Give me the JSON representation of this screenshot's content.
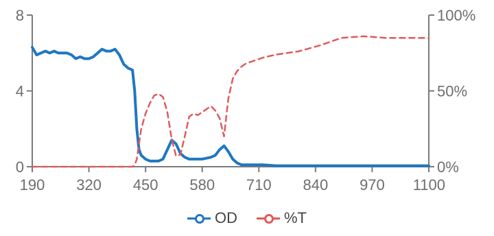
{
  "chart_data": {
    "type": "line",
    "x": [
      190,
      200,
      210,
      220,
      230,
      240,
      250,
      260,
      270,
      280,
      290,
      300,
      310,
      320,
      330,
      340,
      350,
      360,
      370,
      380,
      390,
      400,
      410,
      420,
      425,
      430,
      435,
      440,
      450,
      460,
      470,
      480,
      490,
      500,
      510,
      520,
      530,
      540,
      550,
      560,
      570,
      580,
      590,
      600,
      610,
      620,
      630,
      640,
      650,
      660,
      670,
      680,
      700,
      720,
      750,
      800,
      850,
      900,
      950,
      1000,
      1050,
      1100
    ],
    "series": [
      {
        "name": "OD",
        "axis": "left",
        "color": "#1f77c2",
        "style": "solid",
        "values": [
          6.3,
          5.9,
          6.0,
          6.1,
          6.0,
          6.1,
          6.0,
          6.0,
          6.0,
          5.9,
          5.7,
          5.8,
          5.7,
          5.7,
          5.8,
          6.0,
          6.2,
          6.1,
          6.1,
          6.2,
          5.9,
          5.4,
          5.2,
          5.1,
          4.0,
          2.0,
          0.9,
          0.6,
          0.4,
          0.3,
          0.3,
          0.3,
          0.4,
          0.9,
          1.4,
          1.2,
          0.7,
          0.5,
          0.4,
          0.4,
          0.4,
          0.4,
          0.45,
          0.5,
          0.6,
          0.9,
          1.1,
          0.8,
          0.4,
          0.2,
          0.1,
          0.1,
          0.1,
          0.1,
          0.05,
          0.05,
          0.05,
          0.05,
          0.05,
          0.05,
          0.05,
          0.05
        ]
      },
      {
        "name": "%T",
        "axis": "right",
        "color": "#e05a5a",
        "style": "dashed",
        "values": [
          0,
          0,
          0,
          0,
          0,
          0,
          0,
          0,
          0,
          0,
          0,
          0,
          0,
          0,
          0,
          0,
          0,
          0,
          0,
          0,
          0,
          0,
          0,
          0,
          1,
          5,
          15,
          25,
          35,
          42,
          47,
          48,
          46,
          36,
          18,
          7,
          8,
          20,
          33,
          35,
          34,
          36,
          38,
          40,
          37,
          32,
          20,
          45,
          58,
          63,
          66,
          68,
          70,
          72,
          74,
          76,
          80,
          85,
          86,
          85,
          85,
          85
        ]
      }
    ],
    "xlim": [
      190,
      1100
    ],
    "y_left": {
      "lim": [
        0,
        8
      ],
      "ticks": [
        0,
        4,
        8
      ],
      "tick_labels": [
        "0",
        "4",
        "8"
      ]
    },
    "y_right": {
      "lim": [
        0,
        100
      ],
      "ticks": [
        0,
        50,
        100
      ],
      "tick_labels": [
        "0%",
        "50%",
        "100%"
      ]
    },
    "x_ticks": [
      190,
      320,
      450,
      580,
      710,
      840,
      970,
      1100
    ],
    "x_tick_labels": [
      "190",
      "320",
      "450",
      "580",
      "710",
      "840",
      "970",
      "1100"
    ],
    "grid": false,
    "legend_position": "bottom-center"
  },
  "legend": [
    {
      "label": "OD",
      "color": "#1f77c2"
    },
    {
      "label": "%T",
      "color": "#e05a5a"
    }
  ]
}
